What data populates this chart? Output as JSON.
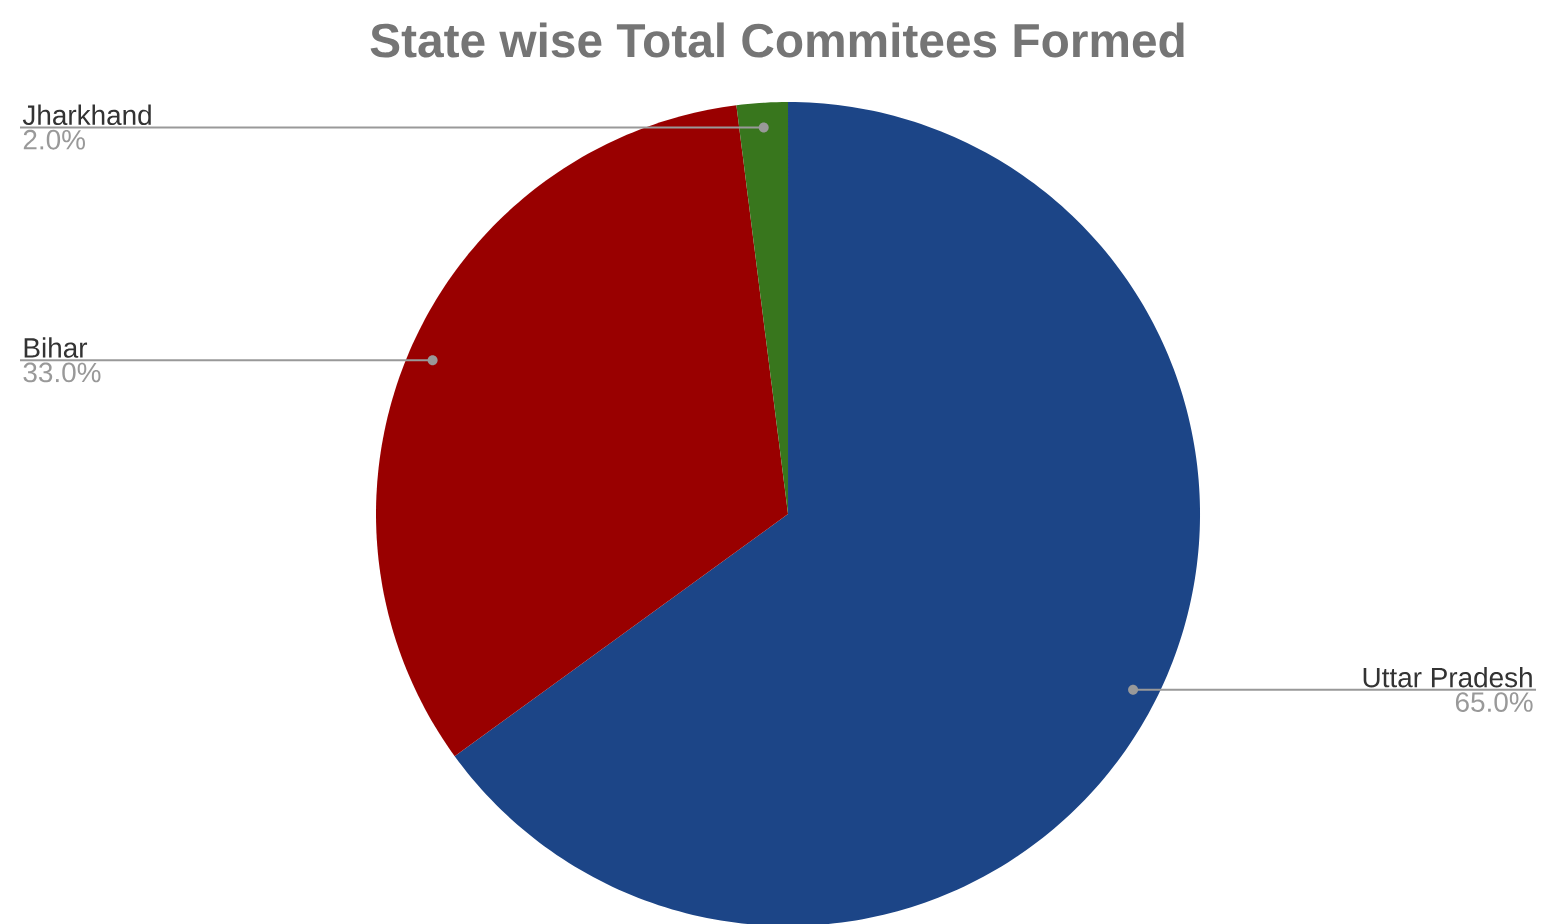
{
  "chart_data": {
    "type": "pie",
    "title": "State wise Total Commitees Formed",
    "categories": [
      "Uttar Pradesh",
      "Bihar",
      "Jharkhand"
    ],
    "values": [
      65,
      33,
      2
    ],
    "colors": [
      "#1c4587",
      "#990000",
      "#38761d"
    ],
    "value_labels": [
      "65.0%",
      "33.0%",
      "2.0%"
    ]
  }
}
